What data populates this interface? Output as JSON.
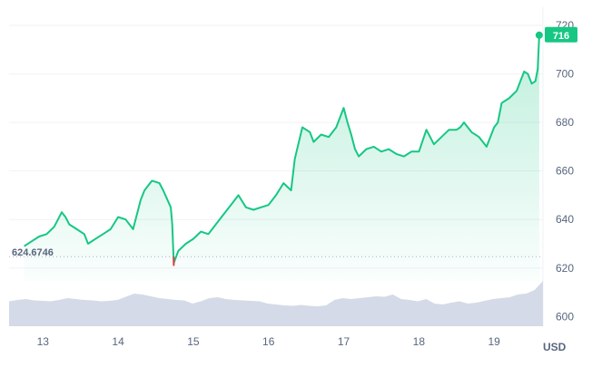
{
  "chart_data": {
    "type": "area",
    "unit": "USD",
    "current_value_label": "716",
    "open_value_label": "624.6746",
    "open_value": 624.6746,
    "accent_color": "#16c784",
    "low_marker_color": "#ea3943",
    "volume_color": "#cfd6e4",
    "ylim": [
      596,
      726
    ],
    "y_ticks": [
      "600",
      "620",
      "640",
      "660",
      "680",
      "700",
      "720"
    ],
    "x_ticks": [
      "13",
      "14",
      "15",
      "16",
      "17",
      "18",
      "19"
    ],
    "xlim": [
      12.55,
      19.65
    ],
    "grid": true,
    "series": [
      {
        "x": [
          12.75,
          12.85,
          12.95,
          13.05,
          13.15,
          13.25,
          13.3,
          13.35,
          13.45,
          13.55,
          13.6,
          13.7,
          13.8,
          13.9,
          14.0,
          14.1,
          14.2,
          14.3,
          14.35,
          14.45,
          14.55,
          14.6,
          14.7,
          14.72,
          14.74,
          14.8,
          14.9,
          15.0,
          15.1,
          15.2,
          15.3,
          15.4,
          15.5,
          15.6,
          15.7,
          15.8,
          15.9,
          16.0,
          16.1,
          16.2,
          16.3,
          16.35,
          16.45,
          16.55,
          16.6,
          16.7,
          16.8,
          16.9,
          17.0,
          17.05,
          17.1,
          17.15,
          17.2,
          17.3,
          17.4,
          17.5,
          17.6,
          17.7,
          17.8,
          17.9,
          18.0,
          18.1,
          18.2,
          18.3,
          18.4,
          18.5,
          18.55,
          18.6,
          18.7,
          18.8,
          18.9,
          19.0,
          19.05,
          19.1,
          19.2,
          19.3,
          19.4,
          19.45,
          19.5,
          19.55,
          19.58,
          19.6
        ],
        "y": [
          629,
          631,
          633,
          634,
          637,
          643,
          641,
          638,
          636,
          634,
          630,
          632,
          634,
          636,
          641,
          640,
          636,
          648,
          652,
          656,
          655,
          652,
          645,
          638,
          622,
          627,
          630,
          632,
          635,
          634,
          638,
          642,
          646,
          650,
          645,
          644,
          645,
          646,
          650,
          655,
          652,
          665,
          678,
          676,
          672,
          675,
          674,
          678,
          686,
          680,
          675,
          669,
          666,
          669,
          670,
          668,
          669,
          667,
          666,
          668,
          668,
          677,
          671,
          674,
          677,
          677,
          678,
          680,
          676,
          674,
          670,
          678,
          680,
          688,
          690,
          693,
          701,
          700,
          696,
          697,
          702,
          716
        ]
      }
    ],
    "volume": [
      0.55,
      0.58,
      0.6,
      0.57,
      0.56,
      0.55,
      0.58,
      0.62,
      0.6,
      0.58,
      0.57,
      0.55,
      0.56,
      0.58,
      0.65,
      0.72,
      0.7,
      0.66,
      0.62,
      0.6,
      0.58,
      0.57,
      0.5,
      0.55,
      0.62,
      0.64,
      0.6,
      0.58,
      0.57,
      0.56,
      0.55,
      0.5,
      0.48,
      0.46,
      0.45,
      0.47,
      0.45,
      0.44,
      0.46,
      0.58,
      0.62,
      0.6,
      0.62,
      0.64,
      0.66,
      0.65,
      0.7,
      0.6,
      0.58,
      0.55,
      0.6,
      0.5,
      0.48,
      0.52,
      0.55,
      0.5,
      0.52,
      0.56,
      0.6,
      0.62,
      0.64,
      0.7,
      0.72,
      0.8,
      1.0
    ]
  }
}
